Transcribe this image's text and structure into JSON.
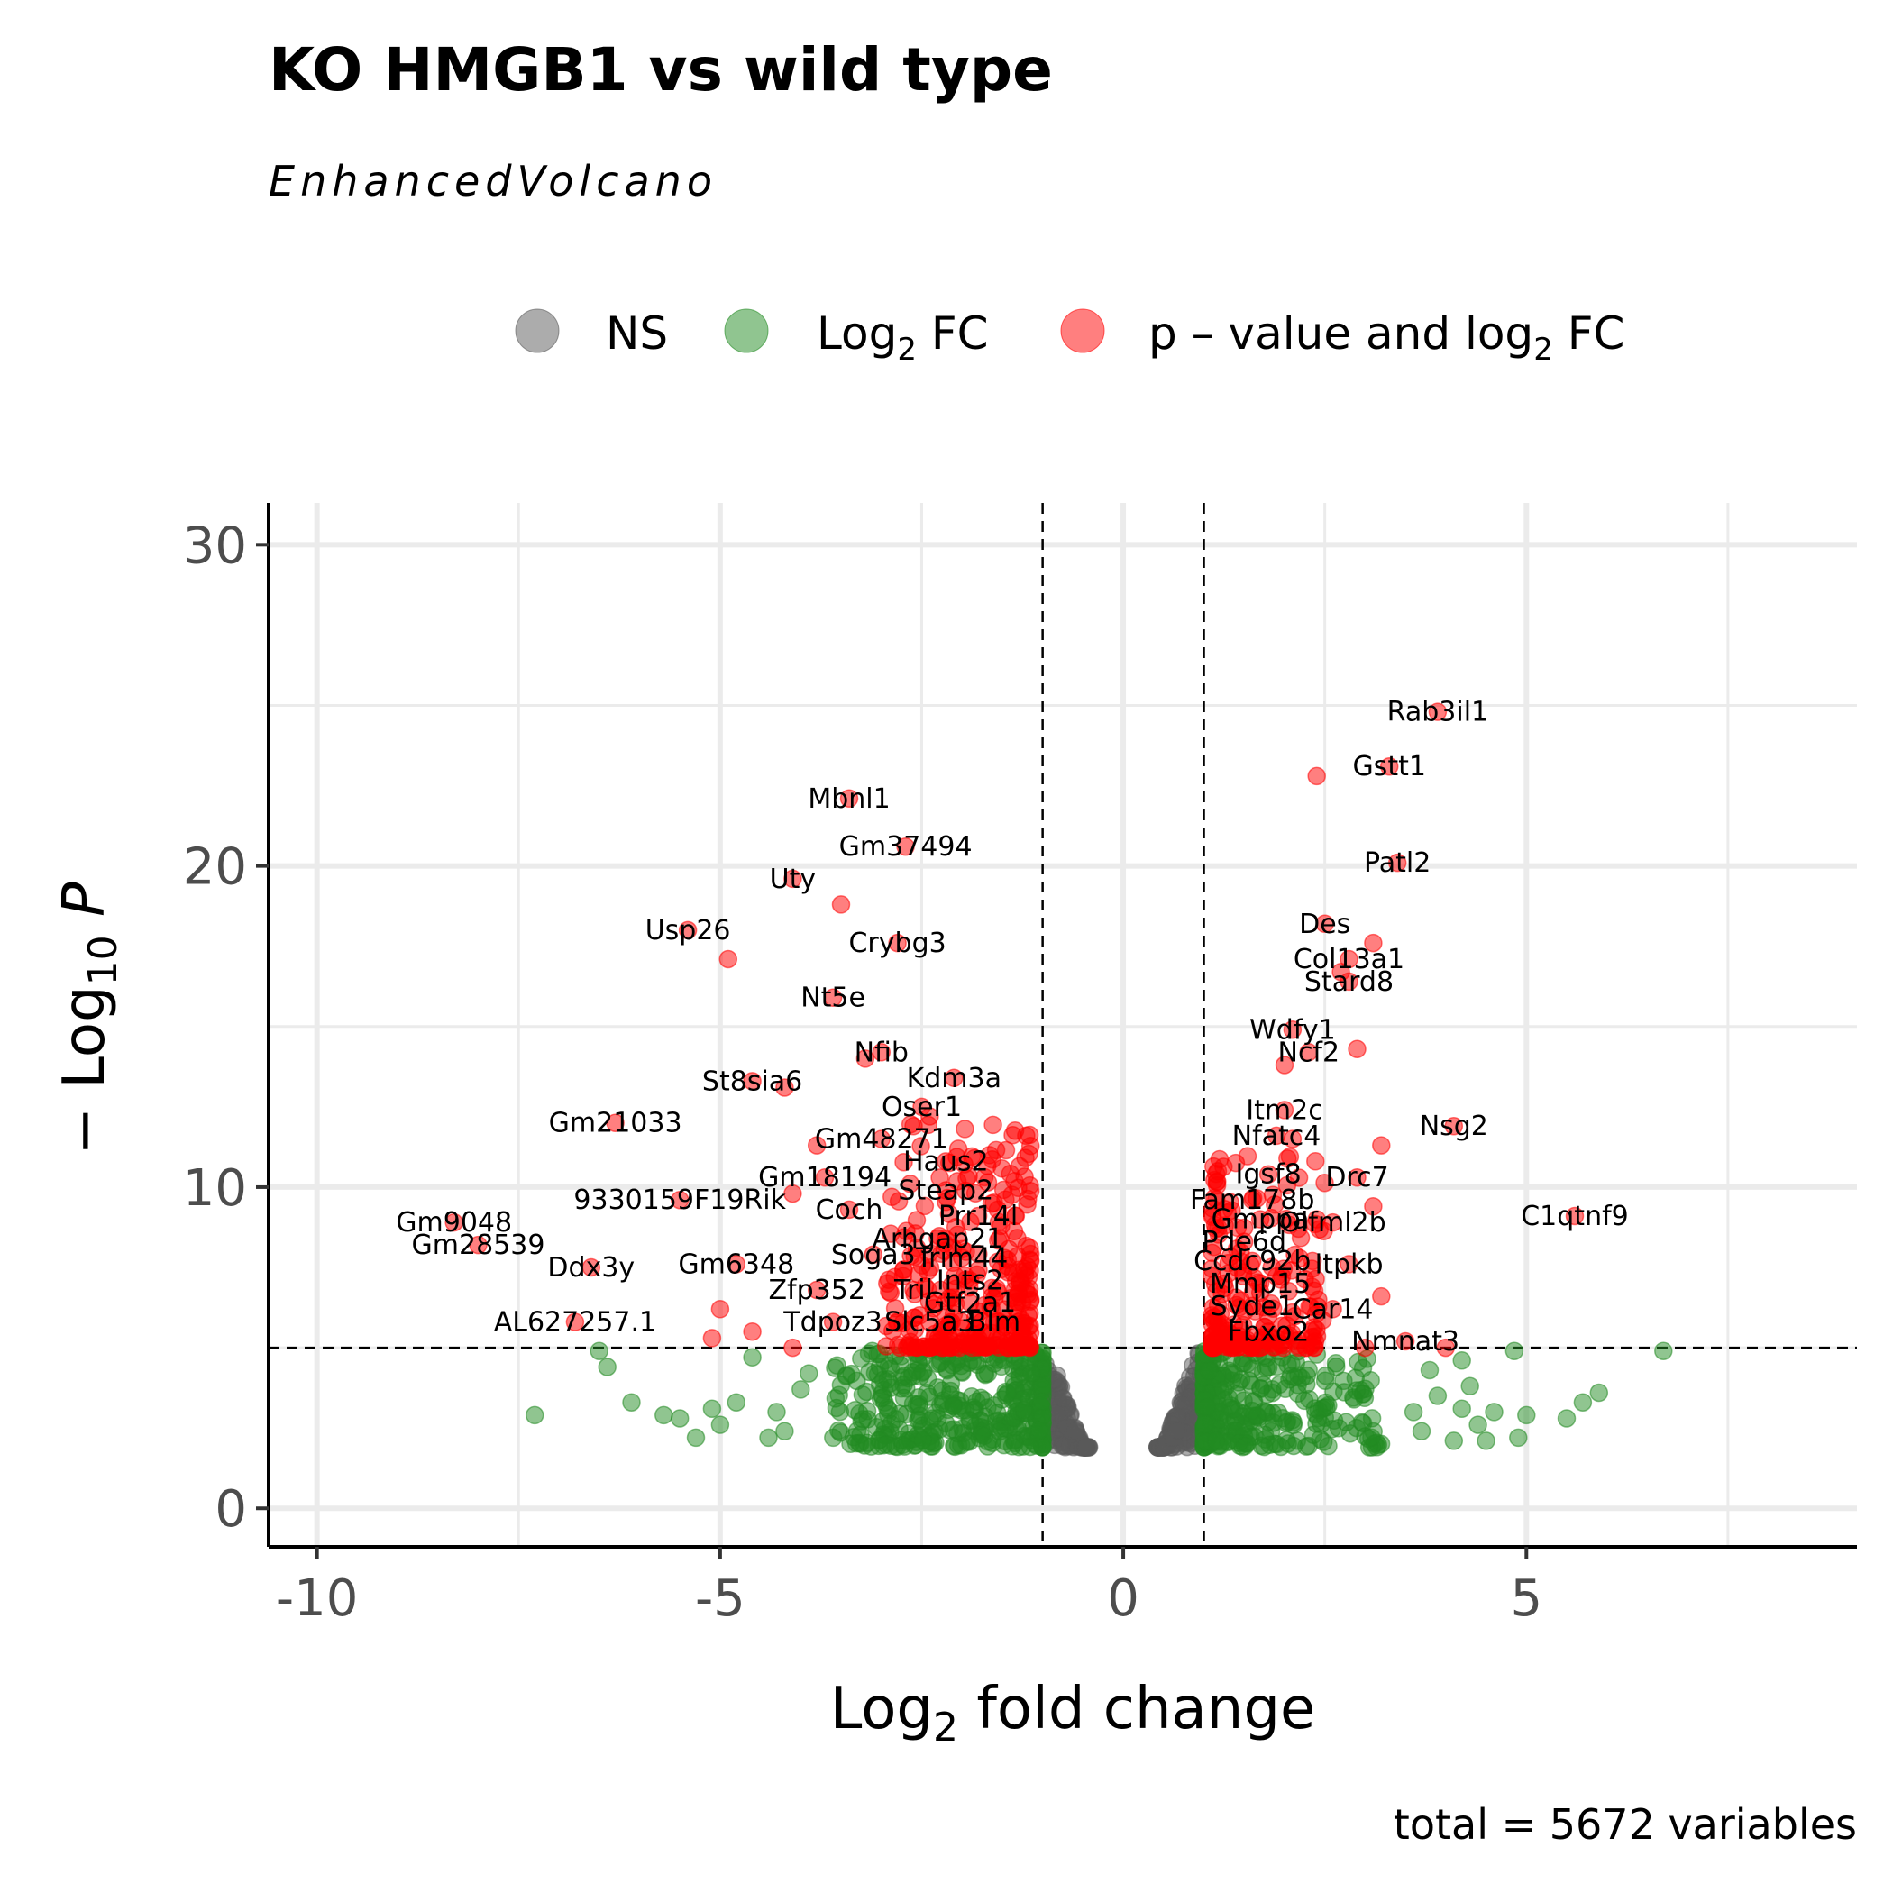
{
  "title": "KO HMGB1 vs wild type",
  "subtitle": "EnhancedVolcano",
  "caption": "total = 5672 variables",
  "legend": {
    "items": [
      {
        "key": "NS",
        "label": "NS",
        "color": "#595959"
      },
      {
        "key": "FC",
        "label_main": "Log",
        "label_sub": "2",
        "label_tail": " FC",
        "color": "#228B22"
      },
      {
        "key": "PFC",
        "label_main": "p – value and log",
        "label_sub": "2",
        "label_tail": " FC",
        "color": "#FF0000"
      }
    ]
  },
  "axes": {
    "x": {
      "title_main": "Log",
      "title_sub": "2",
      "title_tail": " fold change",
      "ticks": [
        -10,
        -5,
        0,
        5
      ],
      "tick_labels": [
        "-10",
        "-5",
        "0",
        "5"
      ]
    },
    "y": {
      "title_pre": "− Log",
      "title_sub": "10",
      "title_tail": " P",
      "ticks": [
        0,
        10,
        20,
        30
      ],
      "tick_labels": [
        "0",
        "10",
        "20",
        "30"
      ]
    }
  },
  "chart_data": {
    "type": "scatter",
    "title": "KO HMGB1 vs wild type",
    "xlabel": "Log2 fold change",
    "ylabel": "−Log10 P",
    "xlim": [
      -10.6,
      9.1
    ],
    "ylim": [
      -1.2,
      31.3
    ],
    "grid": true,
    "legend_position": "top",
    "cutoffs": {
      "log2fc": [
        -1,
        1
      ],
      "neg_log10_p": 5
    },
    "labeled_points": [
      {
        "gene": "Rab3il1",
        "x": 3.9,
        "y": 24.8
      },
      {
        "gene": "Gstt1",
        "x": 3.3,
        "y": 23.1
      },
      {
        "gene": "Patl2",
        "x": 3.4,
        "y": 20.1
      },
      {
        "gene": "Des",
        "x": 2.5,
        "y": 18.2
      },
      {
        "gene": "Col13a1",
        "x": 2.8,
        "y": 17.1
      },
      {
        "gene": "Stard8",
        "x": 2.8,
        "y": 16.4
      },
      {
        "gene": "Wdfy1",
        "x": 2.1,
        "y": 14.9
      },
      {
        "gene": "Ncf2",
        "x": 2.3,
        "y": 14.2
      },
      {
        "gene": "Itm2c",
        "x": 2.0,
        "y": 12.4
      },
      {
        "gene": "Nfatc4",
        "x": 1.9,
        "y": 11.6
      },
      {
        "gene": "Nsg2",
        "x": 4.1,
        "y": 11.9
      },
      {
        "gene": "Igsf8",
        "x": 1.8,
        "y": 10.4
      },
      {
        "gene": "Drc7",
        "x": 2.9,
        "y": 10.3
      },
      {
        "gene": "Fam178b",
        "x": 1.6,
        "y": 9.6
      },
      {
        "gene": "C1qtnf9",
        "x": 5.6,
        "y": 9.1
      },
      {
        "gene": "Gmppa",
        "x": 1.7,
        "y": 9.0
      },
      {
        "gene": "Olfml2b",
        "x": 2.6,
        "y": 8.9
      },
      {
        "gene": "Pde6d",
        "x": 1.5,
        "y": 8.3
      },
      {
        "gene": "Ccdc92b",
        "x": 1.6,
        "y": 7.7
      },
      {
        "gene": "Itpkb",
        "x": 2.8,
        "y": 7.6
      },
      {
        "gene": "Mmp15",
        "x": 1.7,
        "y": 7.0
      },
      {
        "gene": "Syde1",
        "x": 1.6,
        "y": 6.3
      },
      {
        "gene": "Car14",
        "x": 2.6,
        "y": 6.2
      },
      {
        "gene": "Fbxo2",
        "x": 1.8,
        "y": 5.5
      },
      {
        "gene": "Nmnat3",
        "x": 3.5,
        "y": 5.2
      },
      {
        "gene": "Mbnl1",
        "x": -3.4,
        "y": 22.1
      },
      {
        "gene": "Gm37494",
        "x": -2.7,
        "y": 20.6
      },
      {
        "gene": "Uty",
        "x": -4.1,
        "y": 19.6
      },
      {
        "gene": "Usp26",
        "x": -5.4,
        "y": 18.0
      },
      {
        "gene": "Crybg3",
        "x": -2.8,
        "y": 17.6
      },
      {
        "gene": "Nt5e",
        "x": -3.6,
        "y": 15.9
      },
      {
        "gene": "Nfib",
        "x": -3.0,
        "y": 14.2
      },
      {
        "gene": "Kdm3a",
        "x": -2.1,
        "y": 13.4
      },
      {
        "gene": "St8sia6",
        "x": -4.6,
        "y": 13.3
      },
      {
        "gene": "Oser1",
        "x": -2.5,
        "y": 12.5
      },
      {
        "gene": "Gm21033",
        "x": -6.3,
        "y": 12.0
      },
      {
        "gene": "Gm48271",
        "x": -3.0,
        "y": 11.5
      },
      {
        "gene": "Haus2",
        "x": -2.2,
        "y": 10.8
      },
      {
        "gene": "Gm18194",
        "x": -3.7,
        "y": 10.3
      },
      {
        "gene": "Steap2",
        "x": -2.2,
        "y": 9.9
      },
      {
        "gene": "9330159F19Rik",
        "x": -5.5,
        "y": 9.6
      },
      {
        "gene": "Coch",
        "x": -3.4,
        "y": 9.3
      },
      {
        "gene": "Prr14l",
        "x": -1.8,
        "y": 9.1
      },
      {
        "gene": "Gm9048",
        "x": -8.3,
        "y": 8.9
      },
      {
        "gene": "Arhgap21",
        "x": -2.3,
        "y": 8.4
      },
      {
        "gene": "Gm28539",
        "x": -8.0,
        "y": 8.2
      },
      {
        "gene": "Soga3",
        "x": -3.1,
        "y": 7.9
      },
      {
        "gene": "Trim44",
        "x": -2.0,
        "y": 7.8
      },
      {
        "gene": "Gm6348",
        "x": -4.8,
        "y": 7.6
      },
      {
        "gene": "Ddx3y",
        "x": -6.6,
        "y": 7.5
      },
      {
        "gene": "Ints2",
        "x": -1.9,
        "y": 7.1
      },
      {
        "gene": "Zfp352",
        "x": -3.8,
        "y": 6.8
      },
      {
        "gene": "Tril",
        "x": -2.6,
        "y": 6.8
      },
      {
        "gene": "Gtf2a1",
        "x": -1.9,
        "y": 6.4
      },
      {
        "gene": "AL627257.1",
        "x": -6.8,
        "y": 5.8
      },
      {
        "gene": "Tdpoz3",
        "x": -3.6,
        "y": 5.8
      },
      {
        "gene": "Slc5a3",
        "x": -2.4,
        "y": 5.8
      },
      {
        "gene": "Blm",
        "x": -1.6,
        "y": 5.8
      }
    ],
    "extra_significant_points": [
      [
        -4.9,
        17.1
      ],
      [
        -3.5,
        18.8
      ],
      [
        -3.2,
        14.0
      ],
      [
        -2.4,
        12.2
      ],
      [
        -2.6,
        11.9
      ],
      [
        -3.8,
        11.3
      ],
      [
        -4.2,
        13.1
      ],
      [
        -4.1,
        9.8
      ],
      [
        -5.0,
        6.2
      ],
      [
        -5.1,
        5.3
      ],
      [
        -4.6,
        5.5
      ],
      [
        -4.1,
        5.0
      ],
      [
        2.4,
        22.8
      ],
      [
        3.1,
        17.6
      ],
      [
        2.7,
        16.7
      ],
      [
        2.9,
        14.3
      ],
      [
        2.0,
        13.8
      ],
      [
        3.2,
        11.3
      ],
      [
        2.1,
        11.5
      ],
      [
        3.1,
        9.4
      ],
      [
        2.4,
        9.0
      ],
      [
        3.2,
        6.6
      ],
      [
        4.0,
        5.0
      ],
      [
        3.0,
        5.0
      ]
    ],
    "label_positions_hint": "labels rendered near their points"
  }
}
